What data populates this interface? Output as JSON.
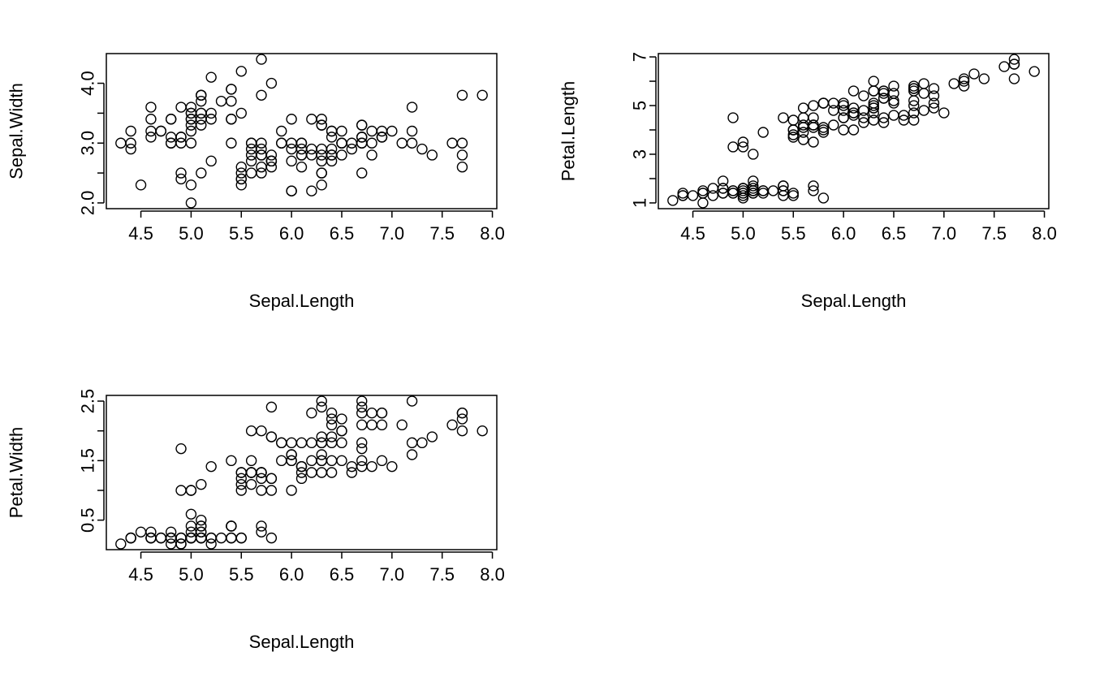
{
  "chart_data": [
    {
      "type": "scatter",
      "xlabel": "Sepal.Length",
      "ylabel": "Sepal.Width",
      "xlim": [
        4.3,
        7.9
      ],
      "ylim": [
        2.0,
        4.4
      ],
      "xticks": [
        "4.5",
        "5.0",
        "5.5",
        "6.0",
        "6.5",
        "7.0",
        "7.5",
        "8.0"
      ],
      "yticks": [
        "2.0",
        "3.0",
        "4.0"
      ],
      "ytick_marks": [
        2.0,
        2.5,
        3.0,
        3.5,
        4.0
      ],
      "x": [
        5.1,
        4.9,
        4.7,
        4.6,
        5.0,
        5.4,
        4.6,
        5.0,
        4.4,
        4.9,
        5.4,
        4.8,
        4.8,
        4.3,
        5.8,
        5.7,
        5.4,
        5.1,
        5.7,
        5.1,
        5.4,
        5.1,
        4.6,
        5.1,
        4.8,
        5.0,
        5.0,
        5.2,
        5.2,
        4.7,
        4.8,
        5.4,
        5.2,
        5.5,
        4.9,
        5.0,
        5.5,
        4.9,
        4.4,
        5.1,
        5.0,
        4.5,
        4.4,
        5.0,
        5.1,
        4.8,
        5.1,
        4.6,
        5.3,
        5.0,
        7.0,
        6.4,
        6.9,
        5.5,
        6.5,
        5.7,
        6.3,
        4.9,
        6.6,
        5.2,
        5.0,
        5.9,
        6.0,
        6.1,
        5.6,
        6.7,
        5.6,
        5.8,
        6.2,
        5.6,
        5.9,
        6.1,
        6.3,
        6.1,
        6.4,
        6.6,
        6.8,
        6.7,
        6.0,
        5.7,
        5.5,
        5.5,
        5.8,
        6.0,
        5.4,
        6.0,
        6.7,
        6.3,
        5.6,
        5.5,
        5.5,
        6.1,
        5.8,
        5.0,
        5.6,
        5.7,
        5.7,
        6.2,
        5.1,
        5.7,
        6.3,
        5.8,
        7.1,
        6.3,
        6.5,
        7.6,
        4.9,
        7.3,
        6.7,
        7.2,
        6.5,
        6.4,
        6.8,
        5.7,
        5.8,
        6.4,
        6.5,
        7.7,
        7.7,
        6.0,
        6.9,
        5.6,
        7.7,
        6.3,
        6.7,
        7.2,
        6.2,
        6.1,
        6.4,
        7.2,
        7.4,
        7.9,
        6.4,
        6.3,
        6.1,
        7.7,
        6.3,
        6.4,
        6.0,
        6.9,
        6.7,
        6.9,
        5.8,
        6.8,
        6.7,
        6.7,
        6.3,
        6.5,
        6.2,
        5.9
      ],
      "y": [
        3.5,
        3.0,
        3.2,
        3.1,
        3.6,
        3.9,
        3.4,
        3.4,
        2.9,
        3.1,
        3.7,
        3.4,
        3.0,
        3.0,
        4.0,
        4.4,
        3.9,
        3.5,
        3.8,
        3.8,
        3.4,
        3.7,
        3.6,
        3.3,
        3.4,
        3.0,
        3.4,
        3.5,
        3.4,
        3.2,
        3.1,
        3.4,
        4.1,
        4.2,
        3.1,
        3.2,
        3.5,
        3.6,
        3.0,
        3.4,
        3.5,
        2.3,
        3.2,
        3.5,
        3.8,
        3.0,
        3.8,
        3.2,
        3.7,
        3.3,
        3.2,
        3.2,
        3.1,
        2.3,
        2.8,
        2.8,
        3.3,
        2.4,
        2.9,
        2.7,
        2.0,
        3.0,
        2.2,
        2.9,
        2.9,
        3.1,
        3.0,
        2.7,
        2.2,
        2.5,
        3.2,
        2.8,
        2.5,
        2.8,
        2.9,
        3.0,
        2.8,
        3.0,
        2.9,
        2.6,
        2.4,
        2.4,
        2.7,
        2.7,
        3.0,
        3.4,
        3.1,
        2.3,
        3.0,
        2.5,
        2.6,
        3.0,
        2.6,
        2.3,
        2.7,
        3.0,
        2.9,
        2.9,
        2.5,
        2.8,
        3.3,
        2.7,
        3.0,
        2.9,
        3.0,
        3.0,
        2.5,
        2.9,
        2.5,
        3.6,
        3.2,
        2.7,
        3.0,
        2.5,
        2.8,
        3.2,
        3.0,
        3.8,
        2.6,
        2.2,
        3.2,
        2.8,
        2.8,
        2.7,
        3.3,
        3.2,
        2.8,
        3.0,
        2.8,
        3.0,
        2.8,
        3.8,
        2.8,
        2.8,
        2.6,
        3.0,
        3.4,
        3.1,
        3.0,
        3.1,
        3.1,
        3.1,
        2.7,
        3.2,
        3.3,
        3.0,
        2.5,
        3.0,
        3.4,
        3.0
      ]
    },
    {
      "type": "scatter",
      "xlabel": "Sepal.Length",
      "ylabel": "Petal.Length",
      "xlim": [
        4.3,
        7.9
      ],
      "ylim": [
        1.0,
        6.9
      ],
      "xticks": [
        "4.5",
        "5.0",
        "5.5",
        "6.0",
        "6.5",
        "7.0",
        "7.5",
        "8.0"
      ],
      "yticks": [
        "1",
        "3",
        "5",
        "7"
      ],
      "ytick_marks": [
        1,
        2,
        3,
        4,
        5,
        6,
        7
      ],
      "x": [
        5.1,
        4.9,
        4.7,
        4.6,
        5.0,
        5.4,
        4.6,
        5.0,
        4.4,
        4.9,
        5.4,
        4.8,
        4.8,
        4.3,
        5.8,
        5.7,
        5.4,
        5.1,
        5.7,
        5.1,
        5.4,
        5.1,
        4.6,
        5.1,
        4.8,
        5.0,
        5.0,
        5.2,
        5.2,
        4.7,
        4.8,
        5.4,
        5.2,
        5.5,
        4.9,
        5.0,
        5.5,
        4.9,
        4.4,
        5.1,
        5.0,
        4.5,
        4.4,
        5.0,
        5.1,
        4.8,
        5.1,
        4.6,
        5.3,
        5.0,
        7.0,
        6.4,
        6.9,
        5.5,
        6.5,
        5.7,
        6.3,
        4.9,
        6.6,
        5.2,
        5.0,
        5.9,
        6.0,
        6.1,
        5.6,
        6.7,
        5.6,
        5.8,
        6.2,
        5.6,
        5.9,
        6.1,
        6.3,
        6.1,
        6.4,
        6.6,
        6.8,
        6.7,
        6.0,
        5.7,
        5.5,
        5.5,
        5.8,
        6.0,
        5.4,
        6.0,
        6.7,
        6.3,
        5.6,
        5.5,
        5.5,
        6.1,
        5.8,
        5.0,
        5.6,
        5.7,
        5.7,
        6.2,
        5.1,
        5.7,
        6.3,
        5.8,
        7.1,
        6.3,
        6.5,
        7.6,
        4.9,
        7.3,
        6.7,
        7.2,
        6.5,
        6.4,
        6.8,
        5.7,
        5.8,
        6.4,
        6.5,
        7.7,
        7.7,
        6.0,
        6.9,
        5.6,
        7.7,
        6.3,
        6.7,
        7.2,
        6.2,
        6.1,
        6.4,
        7.2,
        7.4,
        7.9,
        6.4,
        6.3,
        6.1,
        7.7,
        6.3,
        6.4,
        6.0,
        6.9,
        6.7,
        6.9,
        5.8,
        6.8,
        6.7,
        6.7,
        6.3,
        6.5,
        6.2,
        5.9
      ],
      "y": [
        1.4,
        1.4,
        1.3,
        1.5,
        1.4,
        1.7,
        1.4,
        1.5,
        1.4,
        1.5,
        1.5,
        1.6,
        1.4,
        1.1,
        1.2,
        1.5,
        1.3,
        1.4,
        1.7,
        1.5,
        1.7,
        1.5,
        1.0,
        1.7,
        1.9,
        1.6,
        1.6,
        1.5,
        1.4,
        1.6,
        1.6,
        1.5,
        1.5,
        1.4,
        1.5,
        1.2,
        1.3,
        1.4,
        1.3,
        1.5,
        1.3,
        1.3,
        1.3,
        1.6,
        1.9,
        1.4,
        1.6,
        1.4,
        1.5,
        1.4,
        4.7,
        4.5,
        4.9,
        4.0,
        4.6,
        4.5,
        4.7,
        3.3,
        4.6,
        3.9,
        3.5,
        4.2,
        4.0,
        4.7,
        3.6,
        4.4,
        4.5,
        4.1,
        4.5,
        3.9,
        4.8,
        4.0,
        4.9,
        4.7,
        4.3,
        4.4,
        4.8,
        5.0,
        4.5,
        3.5,
        3.8,
        3.7,
        3.9,
        5.1,
        4.5,
        4.5,
        4.7,
        4.4,
        4.1,
        4.0,
        4.4,
        4.6,
        4.0,
        3.3,
        4.2,
        4.2,
        4.2,
        4.3,
        3.0,
        4.1,
        6.0,
        5.1,
        5.9,
        5.6,
        5.8,
        6.6,
        4.5,
        6.3,
        5.8,
        6.1,
        5.1,
        5.3,
        5.5,
        5.0,
        5.1,
        5.3,
        5.5,
        6.7,
        6.9,
        5.0,
        5.7,
        4.9,
        6.7,
        4.9,
        5.7,
        6.0,
        4.8,
        4.9,
        5.6,
        5.8,
        6.1,
        6.4,
        5.6,
        5.1,
        5.6,
        6.1,
        5.6,
        5.5,
        4.8,
        5.4,
        5.6,
        5.1,
        5.1,
        5.9,
        5.7,
        5.2,
        5.0,
        5.2,
        5.4,
        5.1
      ]
    },
    {
      "type": "scatter",
      "xlabel": "Sepal.Length",
      "ylabel": "Petal.Width",
      "xlim": [
        4.3,
        7.9
      ],
      "ylim": [
        0.1,
        2.5
      ],
      "xticks": [
        "4.5",
        "5.0",
        "5.5",
        "6.0",
        "6.5",
        "7.0",
        "7.5",
        "8.0"
      ],
      "yticks": [
        "0.5",
        "1.5",
        "2.5"
      ],
      "ytick_marks": [
        0.5,
        1.0,
        1.5,
        2.0,
        2.5
      ],
      "x": [
        5.1,
        4.9,
        4.7,
        4.6,
        5.0,
        5.4,
        4.6,
        5.0,
        4.4,
        4.9,
        5.4,
        4.8,
        4.8,
        4.3,
        5.8,
        5.7,
        5.4,
        5.1,
        5.7,
        5.1,
        5.4,
        5.1,
        4.6,
        5.1,
        4.8,
        5.0,
        5.0,
        5.2,
        5.2,
        4.7,
        4.8,
        5.4,
        5.2,
        5.5,
        4.9,
        5.0,
        5.5,
        4.9,
        4.4,
        5.1,
        5.0,
        4.5,
        4.4,
        5.0,
        5.1,
        4.8,
        5.1,
        4.6,
        5.3,
        5.0,
        7.0,
        6.4,
        6.9,
        5.5,
        6.5,
        5.7,
        6.3,
        4.9,
        6.6,
        5.2,
        5.0,
        5.9,
        6.0,
        6.1,
        5.6,
        6.7,
        5.6,
        5.8,
        6.2,
        5.6,
        5.9,
        6.1,
        6.3,
        6.1,
        6.4,
        6.6,
        6.8,
        6.7,
        6.0,
        5.7,
        5.5,
        5.5,
        5.8,
        6.0,
        5.4,
        6.0,
        6.7,
        6.3,
        5.6,
        5.5,
        5.5,
        6.1,
        5.8,
        5.0,
        5.6,
        5.7,
        5.7,
        6.2,
        5.1,
        5.7,
        6.3,
        5.8,
        7.1,
        6.3,
        6.5,
        7.6,
        4.9,
        7.3,
        6.7,
        7.2,
        6.5,
        6.4,
        6.8,
        5.7,
        5.8,
        6.4,
        6.5,
        7.7,
        7.7,
        6.0,
        6.9,
        5.6,
        7.7,
        6.3,
        6.7,
        7.2,
        6.2,
        6.1,
        6.4,
        7.2,
        7.4,
        7.9,
        6.4,
        6.3,
        6.1,
        7.7,
        6.3,
        6.4,
        6.0,
        6.9,
        6.7,
        6.9,
        5.8,
        6.8,
        6.7,
        6.7,
        6.3,
        6.5,
        6.2,
        5.9
      ],
      "y": [
        0.2,
        0.2,
        0.2,
        0.2,
        0.2,
        0.4,
        0.3,
        0.2,
        0.2,
        0.1,
        0.2,
        0.2,
        0.1,
        0.1,
        0.2,
        0.4,
        0.4,
        0.3,
        0.3,
        0.3,
        0.2,
        0.4,
        0.2,
        0.5,
        0.2,
        0.2,
        0.4,
        0.2,
        0.2,
        0.2,
        0.2,
        0.4,
        0.1,
        0.2,
        0.2,
        0.2,
        0.2,
        0.1,
        0.2,
        0.2,
        0.3,
        0.3,
        0.2,
        0.6,
        0.4,
        0.3,
        0.2,
        0.2,
        0.2,
        0.2,
        1.4,
        1.5,
        1.5,
        1.3,
        1.5,
        1.3,
        1.6,
        1.0,
        1.3,
        1.4,
        1.0,
        1.5,
        1.0,
        1.4,
        1.3,
        1.4,
        1.5,
        1.0,
        1.5,
        1.1,
        1.8,
        1.3,
        1.5,
        1.2,
        1.3,
        1.4,
        1.4,
        1.7,
        1.5,
        1.0,
        1.1,
        1.0,
        1.2,
        1.6,
        1.5,
        1.6,
        1.5,
        1.3,
        1.3,
        1.3,
        1.2,
        1.4,
        1.2,
        1.0,
        1.3,
        1.2,
        1.3,
        1.3,
        1.1,
        1.3,
        2.5,
        1.9,
        2.1,
        1.8,
        2.2,
        2.1,
        1.7,
        1.8,
        1.8,
        2.5,
        2.0,
        1.9,
        2.1,
        2.0,
        2.4,
        2.3,
        1.8,
        2.2,
        2.3,
        1.5,
        2.3,
        2.0,
        2.0,
        1.8,
        2.1,
        1.8,
        1.8,
        1.8,
        2.1,
        1.6,
        1.9,
        2.0,
        2.2,
        1.5,
        1.4,
        2.3,
        2.4,
        1.8,
        1.8,
        2.1,
        2.4,
        2.3,
        1.9,
        2.3,
        2.5,
        2.3,
        1.9,
        2.0,
        2.3,
        1.8
      ]
    }
  ]
}
